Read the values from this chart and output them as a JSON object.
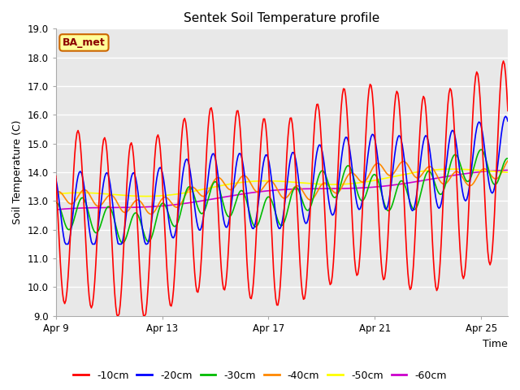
{
  "title": "Sentek Soil Temperature profile",
  "xlabel": "Time",
  "ylabel": "Soil Temperature (C)",
  "ylim": [
    9.0,
    19.0
  ],
  "yticks": [
    9.0,
    10.0,
    11.0,
    12.0,
    13.0,
    14.0,
    15.0,
    16.0,
    17.0,
    18.0,
    19.0
  ],
  "xtick_labels": [
    "Apr 9",
    "Apr 13",
    "Apr 17",
    "Apr 21",
    "Apr 25"
  ],
  "xtick_positions": [
    0,
    4,
    8,
    12,
    16
  ],
  "n_days": 17,
  "background_color": "#e8e8e8",
  "fig_background": "#ffffff",
  "label_box_text": "BA_met",
  "label_box_facecolor": "#ffff99",
  "label_box_edgecolor": "#cc6600",
  "label_box_textcolor": "#8b0000",
  "line_colors": {
    "-10cm": "#ff0000",
    "-20cm": "#0000ff",
    "-30cm": "#00bb00",
    "-40cm": "#ff8800",
    "-50cm": "#ffff00",
    "-60cm": "#cc00cc"
  },
  "line_width": 1.2,
  "legend_labels": [
    "-10cm",
    "-20cm",
    "-30cm",
    "-40cm",
    "-50cm",
    "-60cm"
  ]
}
